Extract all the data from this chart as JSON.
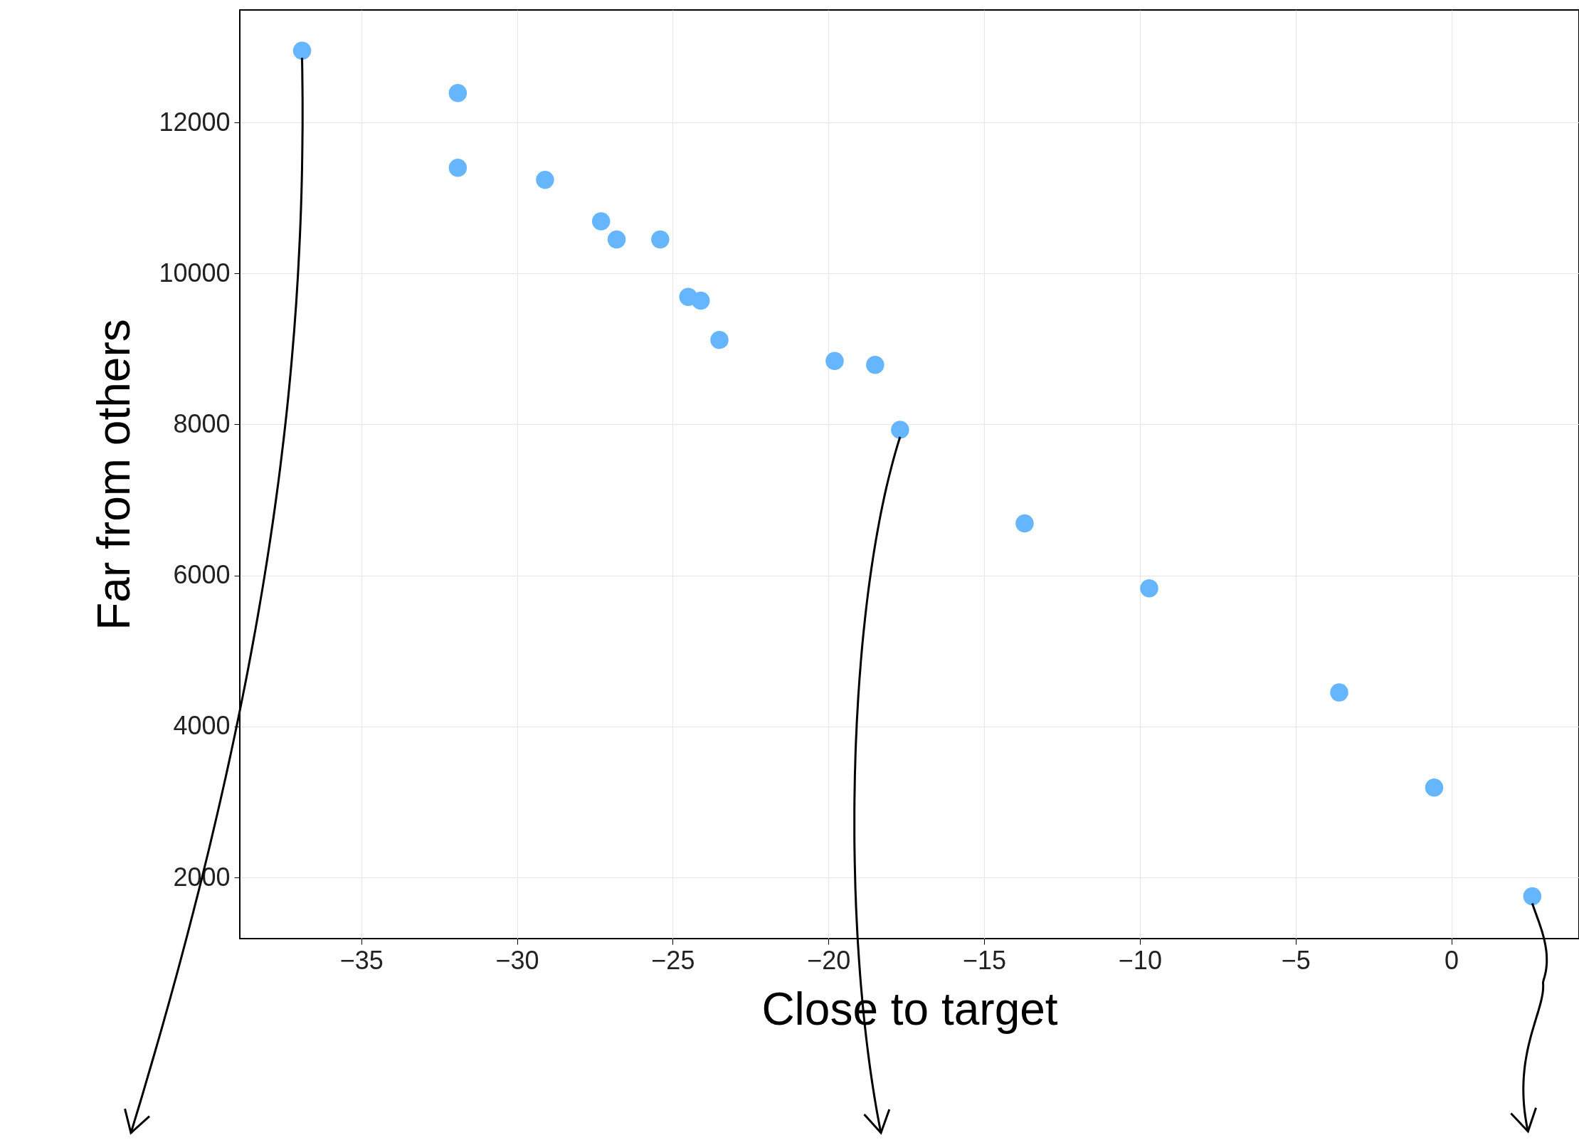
{
  "chart_data": {
    "type": "scatter",
    "xlabel": "Close to target",
    "ylabel": "Far from others",
    "x": [
      -36.9,
      -31.9,
      -31.9,
      -29.1,
      -27.3,
      -26.8,
      -25.4,
      -24.5,
      -24.1,
      -23.5,
      -19.8,
      -18.5,
      -17.7,
      -13.7,
      -9.7,
      -3.6,
      -0.55,
      2.6
    ],
    "series": [
      {
        "color": "#66b5ff",
        "values": [
          12950,
          12390,
          11400,
          11240,
          10690,
          10450,
          10450,
          9690,
          9640,
          9120,
          8840,
          8790,
          7930,
          6690,
          5830,
          4450,
          3190,
          1750
        ]
      }
    ],
    "xlim": [
      -38.9,
      4.1
    ],
    "ylim": [
      1190,
      13490
    ],
    "xticks": [
      -35,
      -30,
      -25,
      -20,
      -15,
      -10,
      -5,
      0
    ],
    "yticks": [
      2000,
      4000,
      6000,
      8000,
      10000,
      12000
    ],
    "grid": true,
    "marker": "circle"
  }
}
